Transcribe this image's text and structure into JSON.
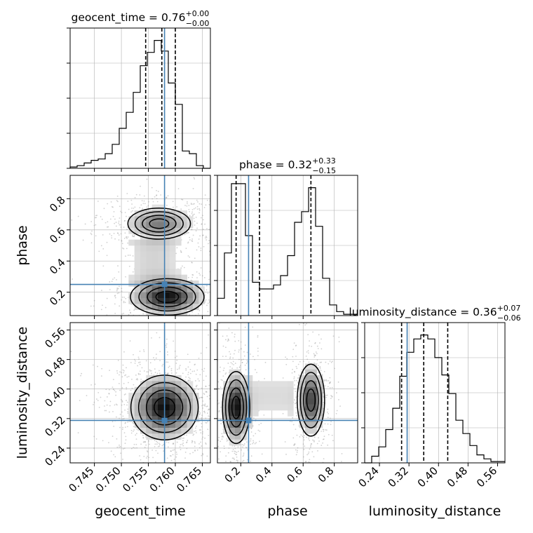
{
  "colors": {
    "truth": "#4682b4",
    "ink": "#000000",
    "grid": "#b0b0b0",
    "scatter": "#9a9a9a"
  },
  "chart_data": {
    "type": "corner",
    "parameters": [
      {
        "key": "geocent_time",
        "label": "geocent_time",
        "range": [
          0.7405,
          0.7665
        ],
        "ticks": [
          "0.745",
          "0.750",
          "0.755",
          "0.760",
          "0.765"
        ],
        "truth": 0.758,
        "title": {
          "prefix": "geocent_time = ",
          "value": "0.76",
          "plus": "+0.00",
          "minus": "−0.00"
        },
        "quantiles": [
          0.7545,
          0.7575,
          0.76
        ]
      },
      {
        "key": "phase",
        "label": "phase",
        "range": [
          0.05,
          0.95
        ],
        "ticks": [
          "0.2",
          "0.4",
          "0.6",
          "0.8"
        ],
        "truth": 0.25,
        "title": {
          "prefix": "phase = ",
          "value": "0.32",
          "plus": "+0.33",
          "minus": "−0.15"
        },
        "quantiles": [
          0.17,
          0.32,
          0.65
        ]
      },
      {
        "key": "luminosity_distance",
        "label": "luminosity_distance",
        "range": [
          0.2,
          0.58
        ],
        "ticks": [
          "0.24",
          "0.32",
          "0.40",
          "0.48",
          "0.56"
        ],
        "truth": 0.315,
        "title": {
          "prefix": "luminosity_distance = ",
          "value": "0.36",
          "plus": "+0.07",
          "minus": "−0.06"
        },
        "quantiles": [
          0.3,
          0.36,
          0.425
        ]
      }
    ],
    "histograms": {
      "geocent_time": {
        "edges_start": 0.7405,
        "bin_width": 0.0013,
        "heights": [
          0.01,
          0.02,
          0.04,
          0.06,
          0.07,
          0.11,
          0.18,
          0.3,
          0.42,
          0.57,
          0.77,
          0.87,
          0.96,
          0.88,
          0.64,
          0.48,
          0.13,
          0.11,
          0.02,
          0.0
        ]
      },
      "phase": {
        "edges_start": 0.05,
        "bin_width": 0.045,
        "heights": [
          0.13,
          0.47,
          0.99,
          0.99,
          0.6,
          0.25,
          0.2,
          0.2,
          0.23,
          0.3,
          0.45,
          0.7,
          0.78,
          0.96,
          0.67,
          0.28,
          0.08,
          0.03,
          0.01,
          0.01
        ]
      },
      "luminosity_distance": {
        "edges_start": 0.2,
        "bin_width": 0.019,
        "heights": [
          0.0,
          0.05,
          0.12,
          0.25,
          0.41,
          0.65,
          0.83,
          0.93,
          0.96,
          0.93,
          0.79,
          0.66,
          0.52,
          0.32,
          0.22,
          0.13,
          0.06,
          0.03,
          0.01,
          0.01
        ]
      }
    },
    "pair_densities": [
      {
        "x": "geocent_time",
        "y": "phase",
        "sx": 0.0035,
        "sy": 0.06,
        "modes": [
          {
            "cx": 0.7585,
            "cy": 0.17,
            "w": 1.0
          },
          {
            "cx": 0.757,
            "cy": 0.64,
            "w": 0.55
          }
        ],
        "ridge": {
          "x": 0.756,
          "y0": 0.25,
          "y1": 0.55,
          "w": 0.18
        }
      },
      {
        "x": "geocent_time",
        "y": "luminosity_distance",
        "sx": 0.0032,
        "sy": 0.045,
        "modes": [
          {
            "cx": 0.758,
            "cy": 0.35,
            "w": 1.0
          }
        ],
        "ridge": null
      },
      {
        "x": "phase",
        "y": "luminosity_distance",
        "sx": 0.045,
        "sy": 0.05,
        "modes": [
          {
            "cx": 0.17,
            "cy": 0.35,
            "w": 1.0
          },
          {
            "cx": 0.65,
            "cy": 0.37,
            "w": 0.8
          }
        ],
        "ridge": {
          "y": 0.38,
          "x0": 0.25,
          "x1": 0.55,
          "w": 0.15
        }
      }
    ],
    "grid": true
  }
}
